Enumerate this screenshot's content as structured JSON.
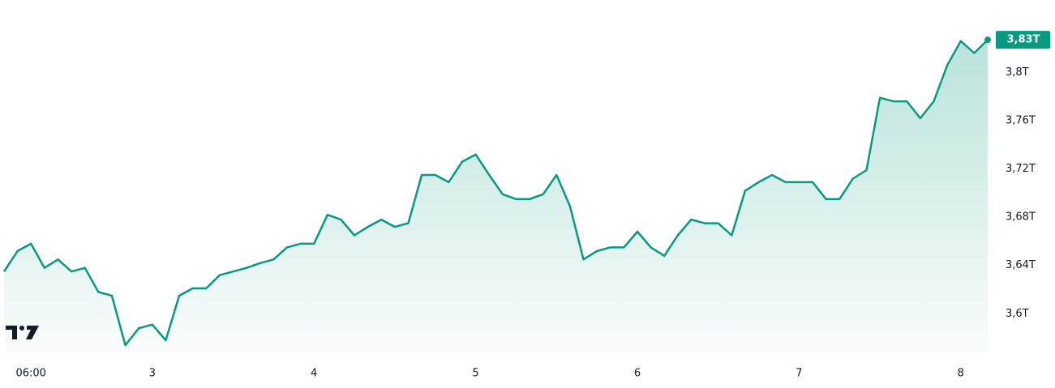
{
  "chart_data": {
    "type": "area",
    "categories": [
      null,
      null,
      "06:00",
      null,
      null,
      null,
      null,
      null,
      null,
      null,
      null,
      "3",
      null,
      null,
      null,
      null,
      null,
      null,
      null,
      null,
      null,
      null,
      null,
      "4",
      null,
      null,
      null,
      null,
      null,
      null,
      null,
      null,
      null,
      null,
      null,
      "5",
      null,
      null,
      null,
      null,
      null,
      null,
      null,
      null,
      null,
      null,
      null,
      "6",
      null,
      null,
      null,
      null,
      null,
      null,
      null,
      null,
      null,
      null,
      null,
      "7",
      null,
      null,
      null,
      null,
      null,
      null,
      null,
      null,
      null,
      null,
      null,
      "8",
      null,
      null
    ],
    "values": [
      3.635,
      3.652,
      3.658,
      3.638,
      3.645,
      3.635,
      3.638,
      3.618,
      3.615,
      3.574,
      3.588,
      3.591,
      3.578,
      3.615,
      3.621,
      3.621,
      3.632,
      3.635,
      3.638,
      3.642,
      3.645,
      3.655,
      3.658,
      3.658,
      3.682,
      3.678,
      3.665,
      3.672,
      3.678,
      3.672,
      3.675,
      3.715,
      3.715,
      3.709,
      3.726,
      3.732,
      3.715,
      3.699,
      3.695,
      3.695,
      3.699,
      3.715,
      3.689,
      3.645,
      3.652,
      3.655,
      3.655,
      3.668,
      3.655,
      3.648,
      3.665,
      3.678,
      3.675,
      3.675,
      3.665,
      3.702,
      3.709,
      3.715,
      3.709,
      3.709,
      3.709,
      3.695,
      3.695,
      3.712,
      3.719,
      3.779,
      3.776,
      3.776,
      3.762,
      3.776,
      3.806,
      3.826,
      3.816,
      3.827
    ],
    "value_labels": [
      null,
      null,
      null,
      null,
      null,
      null,
      null,
      null,
      null,
      null,
      null,
      null,
      null,
      null,
      null,
      null,
      null,
      null,
      null,
      null,
      null,
      null,
      null,
      null,
      null,
      null,
      null,
      null,
      null,
      null,
      null,
      null,
      null,
      null,
      null,
      null,
      null,
      null,
      null,
      null,
      null,
      null,
      null,
      null,
      null,
      null,
      null,
      null,
      null,
      null,
      null,
      null,
      null,
      null,
      null,
      null,
      null,
      null,
      null,
      null,
      null,
      null,
      null,
      null,
      null,
      null,
      null,
      null,
      null,
      null,
      null,
      null,
      null,
      "3,83T"
    ],
    "color": "#089981",
    "ylim": [
      3.568,
      3.86
    ],
    "yticks": [
      {
        "value": 3.6,
        "label": "3,6T"
      },
      {
        "value": 3.64,
        "label": "3,64T"
      },
      {
        "value": 3.68,
        "label": "3,68T"
      },
      {
        "value": 3.72,
        "label": "3,72T"
      },
      {
        "value": 3.76,
        "label": "3,76T"
      },
      {
        "value": 3.8,
        "label": "3,8T"
      }
    ]
  }
}
